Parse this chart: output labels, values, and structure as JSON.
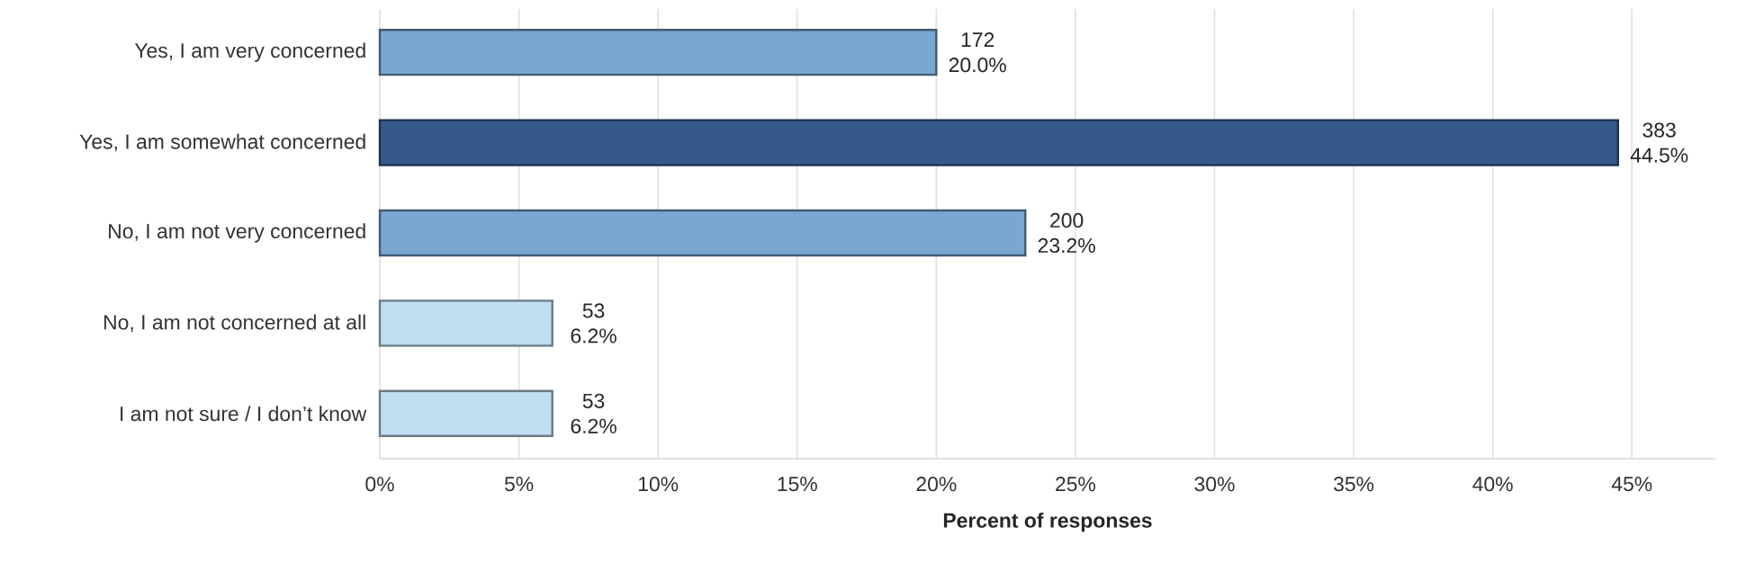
{
  "chart_data": {
    "type": "bar",
    "orientation": "horizontal",
    "xlabel": "Percent of responses",
    "categories": [
      "Yes, I am very concerned",
      "Yes, I am somewhat concerned",
      "No, I am not very concerned",
      "No, I am not concerned at all",
      "I am not sure / I don’t know"
    ],
    "values": [
      20.0,
      44.5,
      23.2,
      6.2,
      6.2
    ],
    "value_labels": [
      "172 20.0%",
      "383 44.5%",
      "200 23.2%",
      "53 6.2%",
      "53 6.2%"
    ],
    "colors": [
      "#7aa6d2",
      "#35598a",
      "#7aa6d2",
      "#c0ddf2",
      "#c0ddf2"
    ],
    "xlim": [
      0,
      48
    ],
    "xticks": [
      {
        "value": 0,
        "label": "0%"
      },
      {
        "value": 5,
        "label": "5%"
      },
      {
        "value": 10,
        "label": "10%"
      },
      {
        "value": 15,
        "label": "15%"
      },
      {
        "value": 20,
        "label": "20%"
      },
      {
        "value": 25,
        "label": "25%"
      },
      {
        "value": 30,
        "label": "30%"
      },
      {
        "value": 35,
        "label": "35%"
      },
      {
        "value": 40,
        "label": "40%"
      },
      {
        "value": 45,
        "label": "45%"
      }
    ],
    "grid": "x"
  }
}
